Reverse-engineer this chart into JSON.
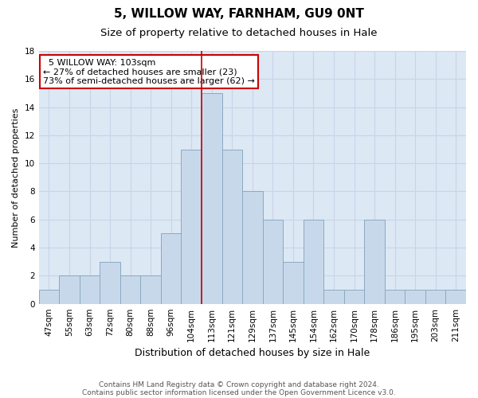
{
  "title": "5, WILLOW WAY, FARNHAM, GU9 0NT",
  "subtitle": "Size of property relative to detached houses in Hale",
  "xlabel": "Distribution of detached houses by size in Hale",
  "ylabel": "Number of detached properties",
  "categories": [
    "47sqm",
    "55sqm",
    "63sqm",
    "72sqm",
    "80sqm",
    "88sqm",
    "96sqm",
    "104sqm",
    "113sqm",
    "121sqm",
    "129sqm",
    "137sqm",
    "145sqm",
    "154sqm",
    "162sqm",
    "170sqm",
    "178sqm",
    "186sqm",
    "195sqm",
    "203sqm",
    "211sqm"
  ],
  "values": [
    1,
    2,
    2,
    3,
    2,
    2,
    5,
    11,
    15,
    11,
    8,
    6,
    3,
    6,
    1,
    1,
    6,
    1,
    1,
    1,
    1
  ],
  "bar_color": "#c8d8eb",
  "bar_edge_color": "#8aaabf",
  "reference_line_x": 7.5,
  "reference_line_color": "#cc0000",
  "annotation_text": "  5 WILLOW WAY: 103sqm  \n← 27% of detached houses are smaller (23)\n73% of semi-detached houses are larger (62) →",
  "annotation_box_color": "white",
  "annotation_box_edge_color": "#cc0000",
  "ylim": [
    0,
    18
  ],
  "yticks": [
    0,
    2,
    4,
    6,
    8,
    10,
    12,
    14,
    16,
    18
  ],
  "grid_color": "#c8d4e8",
  "background_color": "#dde8f5",
  "footer_line1": "Contains HM Land Registry data © Crown copyright and database right 2024.",
  "footer_line2": "Contains public sector information licensed under the Open Government Licence v3.0.",
  "title_fontsize": 11,
  "subtitle_fontsize": 9.5,
  "xlabel_fontsize": 9,
  "ylabel_fontsize": 8,
  "tick_fontsize": 7.5,
  "annotation_fontsize": 8,
  "footer_fontsize": 6.5
}
